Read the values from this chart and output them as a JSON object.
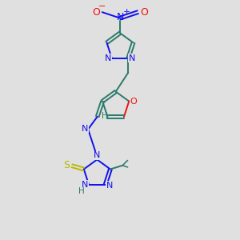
{
  "bg_color": "#e0e0e0",
  "bond_color": "#2a7a6a",
  "N_color": "#1010ee",
  "O_color": "#ee1010",
  "S_color": "#b8b800",
  "H_color": "#2a7a6a",
  "lw": 1.4,
  "fs": 8.0,
  "xlim": [
    0,
    10
  ],
  "ylim": [
    0,
    14
  ]
}
